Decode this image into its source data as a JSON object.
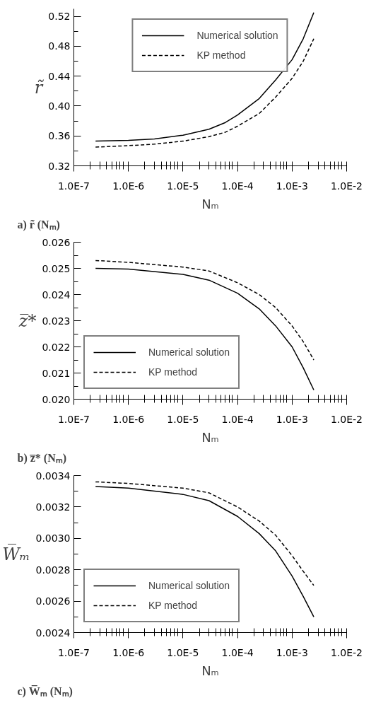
{
  "chart_data": [
    {
      "type": "line",
      "ylabel": "r̃",
      "xlabel": "Nₘ",
      "log": "x",
      "xlim": [
        1e-07,
        0.01
      ],
      "xticks": [
        {
          "value": 1e-07,
          "label": "1.0E-7"
        },
        {
          "value": 1e-06,
          "label": "1.0E-6"
        },
        {
          "value": 1e-05,
          "label": "1.0E-5"
        },
        {
          "value": 0.0001,
          "label": "1.0E-4"
        },
        {
          "value": 0.001,
          "label": "1.0E-3"
        },
        {
          "value": 0.01,
          "label": "1.0E-2"
        }
      ],
      "ylim": [
        0.32,
        0.53
      ],
      "yticks": [
        0.32,
        0.36,
        {
          "value": 0.4,
          "label": "0.40"
        },
        0.44,
        0.48,
        0.52
      ],
      "legend": "top",
      "grid": false,
      "annotations": [
        "a) r̃ (Nₘ)"
      ],
      "x": [
        2.5e-07,
        1e-06,
        3e-06,
        1e-05,
        3e-05,
        6e-05,
        0.0001,
        0.00025,
        0.0005,
        0.001,
        0.0016,
        0.0025
      ],
      "series": [
        {
          "name": "Numerical solution",
          "color": "#000000",
          "line_style": "solid",
          "values": [
            0.353,
            0.354,
            0.356,
            0.361,
            0.369,
            0.378,
            0.388,
            0.41,
            0.435,
            0.462,
            0.49,
            0.525
          ]
        },
        {
          "name": "KP method",
          "color": "#000000",
          "line_style": "dashed",
          "values": [
            0.345,
            0.347,
            0.349,
            0.353,
            0.359,
            0.365,
            0.373,
            0.39,
            0.412,
            0.437,
            0.46,
            0.49
          ]
        }
      ]
    },
    {
      "type": "line",
      "ylabel": "z̅*",
      "xlabel": "Nₘ",
      "log": "x",
      "xlim": [
        1e-07,
        0.01
      ],
      "xticks": [
        {
          "value": 1e-07,
          "label": "1.0E-7"
        },
        {
          "value": 1e-06,
          "label": "1.0E-6"
        },
        {
          "value": 1e-05,
          "label": "1.0E-5"
        },
        {
          "value": 0.0001,
          "label": "1.0E-4"
        },
        {
          "value": 0.001,
          "label": "1.0E-3"
        },
        {
          "value": 0.01,
          "label": "1.0E-2"
        }
      ],
      "ylim": [
        0.02,
        0.026
      ],
      "yticks": [
        {
          "value": 0.02,
          "label": "0.020"
        },
        0.021,
        0.022,
        0.023,
        0.024,
        0.025,
        0.026
      ],
      "legend": "bottom left",
      "grid": false,
      "annotations": [
        "b) z̅* (Nₘ)"
      ],
      "x": [
        2.5e-07,
        1e-06,
        1e-05,
        3e-05,
        0.0001,
        0.00025,
        0.0005,
        0.001,
        0.0016,
        0.0025
      ],
      "series": [
        {
          "name": "Numerical solution",
          "color": "#000000",
          "line_style": "solid",
          "values": [
            0.025,
            0.02497,
            0.02477,
            0.02455,
            0.02405,
            0.02345,
            0.0228,
            0.022,
            0.0212,
            0.02035
          ]
        },
        {
          "name": "KP method",
          "color": "#000000",
          "line_style": "dashed",
          "values": [
            0.0253,
            0.02523,
            0.02505,
            0.0249,
            0.02445,
            0.024,
            0.0235,
            0.0228,
            0.0222,
            0.0215
          ]
        }
      ]
    },
    {
      "type": "line",
      "ylabel": "W̅ₘ",
      "xlabel": "Nₘ",
      "log": "x",
      "xlim": [
        1e-07,
        0.01
      ],
      "xticks": [
        {
          "value": 1e-07,
          "label": "1.0E-7"
        },
        {
          "value": 1e-06,
          "label": "1.0E-6"
        },
        {
          "value": 1e-05,
          "label": "1.0E-5"
        },
        {
          "value": 0.0001,
          "label": "1.0E-4"
        },
        {
          "value": 0.001,
          "label": "1.0E-3"
        },
        {
          "value": 0.01,
          "label": "1.0E-2"
        }
      ],
      "ylim": [
        0.0024,
        0.0034
      ],
      "yticks": [
        0.0024,
        0.0026,
        0.0028,
        {
          "value": 0.003,
          "label": "0.0030"
        },
        0.0032,
        0.0034
      ],
      "legend": "bottom left",
      "grid": false,
      "annotations": [
        "c) W̅ₘ (Nₘ)"
      ],
      "x": [
        2.5e-07,
        1e-06,
        1e-05,
        3e-05,
        0.0001,
        0.00025,
        0.0005,
        0.001,
        0.0016,
        0.0025
      ],
      "series": [
        {
          "name": "Numerical solution",
          "color": "#000000",
          "line_style": "solid",
          "values": [
            0.00333,
            0.00332,
            0.00328,
            0.00324,
            0.00314,
            0.00303,
            0.00292,
            0.00276,
            0.00263,
            0.0025
          ]
        },
        {
          "name": "KP method",
          "color": "#000000",
          "line_style": "dashed",
          "values": [
            0.00336,
            0.00335,
            0.00332,
            0.00329,
            0.0032,
            0.00311,
            0.00302,
            0.00289,
            0.00279,
            0.0027
          ]
        }
      ]
    }
  ]
}
